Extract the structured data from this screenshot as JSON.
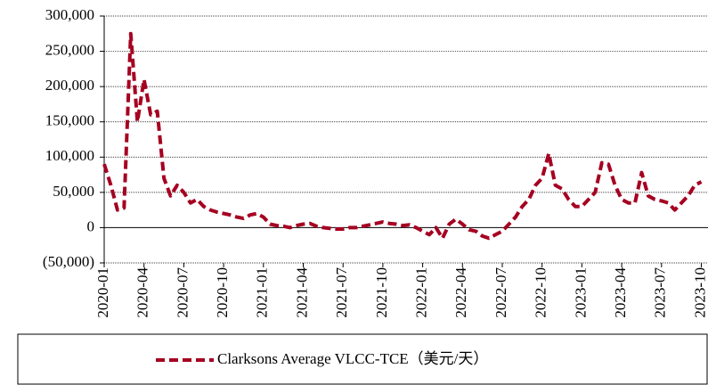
{
  "chart_data": {
    "type": "line",
    "categories": [
      "2020-01",
      null,
      null,
      null,
      null,
      null,
      "2020-04",
      null,
      null,
      null,
      null,
      null,
      "2020-07",
      null,
      null,
      null,
      null,
      null,
      "2020-10",
      null,
      null,
      null,
      null,
      null,
      "2021-01",
      null,
      null,
      null,
      null,
      null,
      "2021-04",
      null,
      null,
      null,
      null,
      null,
      "2021-07",
      null,
      null,
      null,
      null,
      null,
      "2021-10",
      null,
      null,
      null,
      null,
      null,
      "2022-01",
      null,
      null,
      null,
      null,
      null,
      "2022-04",
      null,
      null,
      null,
      null,
      null,
      "2022-07",
      null,
      null,
      null,
      null,
      null,
      "2022-10",
      null,
      null,
      null,
      null,
      null,
      "2023-01",
      null,
      null,
      null,
      null,
      null,
      "2023-04",
      null,
      null,
      null,
      null,
      null,
      "2023-07",
      null,
      null,
      null,
      null,
      null,
      "2023-10"
    ],
    "series": [
      {
        "name": "Clarksons Average VLCC-TCE（美元/天）",
        "color": "#a50021",
        "values": [
          90000,
          60000,
          25000,
          28000,
          275000,
          150000,
          210000,
          160000,
          165000,
          70000,
          45000,
          60000,
          50000,
          35000,
          40000,
          30000,
          25000,
          22000,
          20000,
          18000,
          15000,
          13000,
          18000,
          20000,
          15000,
          5000,
          3000,
          2000,
          0,
          3000,
          5000,
          6000,
          2000,
          0,
          -1000,
          -2000,
          -2000,
          0,
          0,
          2000,
          4000,
          6000,
          8000,
          6000,
          5000,
          3000,
          4000,
          0,
          -5000,
          -10000,
          0,
          -15000,
          5000,
          12000,
          5000,
          -3000,
          -5000,
          -12000,
          -15000,
          -10000,
          -5000,
          5000,
          15000,
          30000,
          40000,
          60000,
          70000,
          105000,
          60000,
          55000,
          40000,
          30000,
          30000,
          40000,
          50000,
          92000,
          90000,
          60000,
          40000,
          35000,
          35000,
          78000,
          45000,
          40000,
          38000,
          35000,
          25000,
          35000,
          45000,
          60000,
          65000
        ]
      }
    ],
    "ylim": [
      -50000,
      300000
    ],
    "yticks": [
      {
        "value": -50000,
        "label": "(50,000)"
      },
      0,
      {
        "value": 50000,
        "label": "50,000"
      },
      {
        "value": 100000,
        "label": "100,000"
      },
      {
        "value": 150000,
        "label": "150,000"
      },
      {
        "value": 200000,
        "label": "200,000"
      },
      {
        "value": 250000,
        "label": "250,000"
      },
      {
        "value": 300000,
        "label": "300,000"
      }
    ],
    "grid": true,
    "negative_tick_color": "#e00000",
    "legend": "bottom"
  }
}
